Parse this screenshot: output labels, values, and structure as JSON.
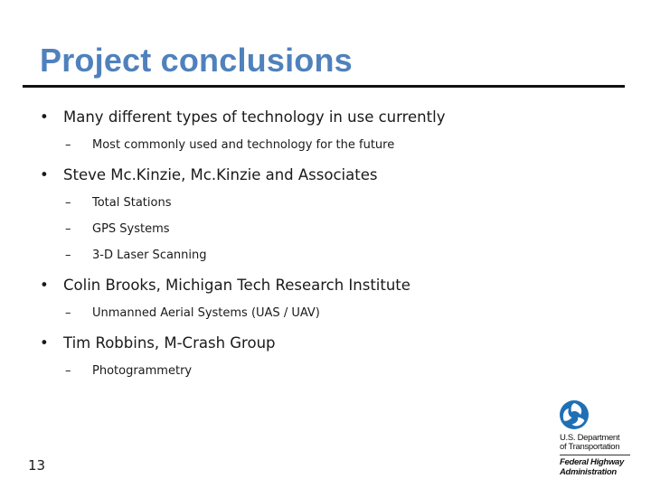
{
  "slide": {
    "title": "Project conclusions",
    "page_number": "13"
  },
  "bullets": [
    {
      "text": "Many different types of technology in use currently",
      "subs": [
        "Most commonly used and technology for the future"
      ]
    },
    {
      "text": "Steve Mc.Kinzie, Mc.Kinzie and Associates",
      "subs": [
        "Total Stations",
        "GPS Systems",
        "3-D Laser Scanning"
      ]
    },
    {
      "text": "Colin Brooks, Michigan Tech Research Institute",
      "subs": [
        "Unmanned Aerial Systems (UAS / UAV)"
      ]
    },
    {
      "text": "Tim Robbins, M-Crash Group",
      "subs": [
        "Photogrammetry"
      ]
    }
  ],
  "markers": {
    "bullet": "•",
    "dash": "–"
  },
  "logo": {
    "icon": "usdot-triskelion-icon",
    "dept_line1": "U.S. Department",
    "dept_line2": "of Transportation",
    "agency_line1": "Federal Highway",
    "agency_line2": "Administration",
    "color": "#1f6fb5"
  },
  "colors": {
    "title": "#4f81bd",
    "rule": "#111111",
    "text": "#1a1a1a"
  }
}
